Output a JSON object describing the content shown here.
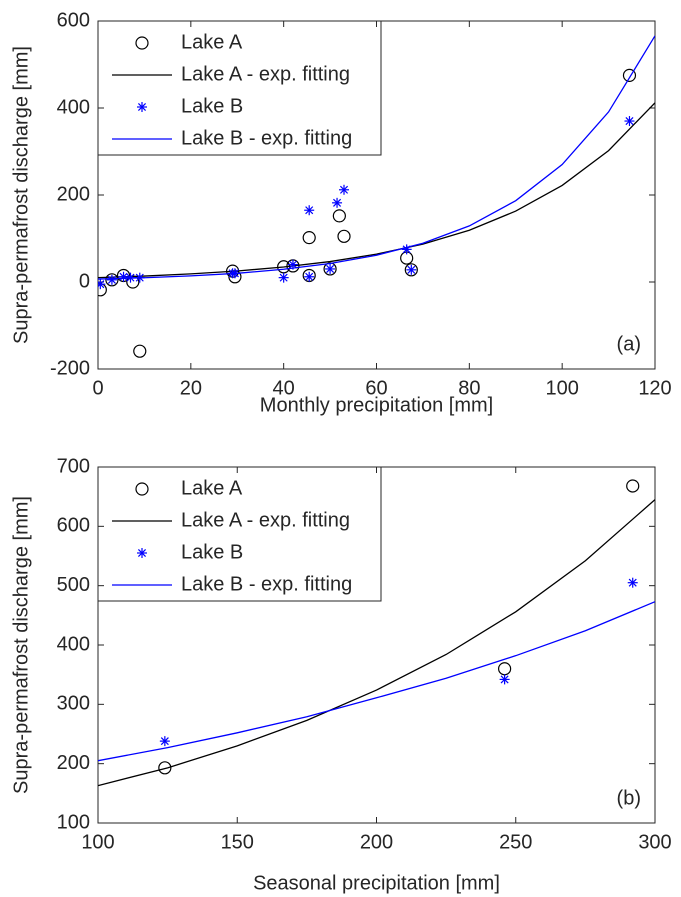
{
  "chart_data": [
    {
      "type": "scatter",
      "xlabel": "Monthly precipitation [mm]",
      "ylabel": "Supra-permafrost discharge [mm]",
      "annotation": "(a)",
      "xlim": [
        0,
        120
      ],
      "xticks": [
        0,
        20,
        40,
        60,
        80,
        100,
        120
      ],
      "ylim": [
        -200,
        600
      ],
      "yticks": [
        -200,
        0,
        200,
        400,
        600
      ],
      "legend": "upper left",
      "grid": false,
      "series": [
        {
          "name": "Lake A",
          "color": "#000000",
          "mode": "markers",
          "marker": "o",
          "x": [
            0.5,
            3,
            5.5,
            7.5,
            9,
            29,
            29.5,
            40,
            42,
            45.5,
            45.5,
            50,
            52,
            53,
            66.5,
            67.5,
            114.5
          ],
          "values": [
            -18,
            5,
            15,
            0,
            -159,
            25,
            12,
            35,
            37,
            102,
            15,
            30,
            152,
            105,
            55,
            28,
            475
          ]
        },
        {
          "name": "Lake A - exp. fitting",
          "color": "#000000",
          "mode": "lines",
          "x": [
            0,
            10,
            20,
            30,
            40,
            50,
            60,
            70,
            80,
            90,
            100,
            110,
            120
          ],
          "values": [
            10,
            13.6,
            18.6,
            25.3,
            34.5,
            47,
            64,
            87,
            119,
            163,
            222,
            302,
            412
          ]
        },
        {
          "name": "Lake B",
          "color": "#0000ff",
          "mode": "markers",
          "marker": "*",
          "x": [
            0.5,
            3,
            5.5,
            7,
            9,
            29,
            29.5,
            40,
            42,
            45.5,
            45.5,
            50,
            51.5,
            53,
            66.5,
            67.5,
            114.5
          ],
          "values": [
            -5,
            5,
            12,
            10,
            10,
            20,
            20,
            10,
            40,
            165,
            12,
            30,
            182,
            212,
            75,
            28,
            370
          ]
        },
        {
          "name": "Lake B - exp. fitting",
          "color": "#0000ff",
          "mode": "lines",
          "x": [
            0,
            10,
            20,
            30,
            40,
            50,
            60,
            70,
            80,
            90,
            100,
            110,
            120
          ],
          "values": [
            6.7,
            9.7,
            14,
            20,
            29.3,
            42.5,
            61.5,
            89,
            129,
            187,
            270,
            391,
            566
          ]
        }
      ]
    },
    {
      "type": "scatter",
      "xlabel": "Seasonal precipitation [mm]",
      "ylabel": "Supra-permafrost discharge [mm]",
      "annotation": "(b)",
      "xlim": [
        100,
        300
      ],
      "xticks": [
        100,
        150,
        200,
        250,
        300
      ],
      "ylim": [
        100,
        700
      ],
      "yticks": [
        100,
        200,
        300,
        400,
        500,
        600,
        700
      ],
      "legend": "upper left",
      "grid": false,
      "series": [
        {
          "name": "Lake A",
          "color": "#000000",
          "mode": "markers",
          "marker": "o",
          "x": [
            124,
            246,
            292
          ],
          "values": [
            193,
            360,
            668
          ]
        },
        {
          "name": "Lake A - exp. fitting",
          "color": "#000000",
          "mode": "lines",
          "x": [
            100,
            125,
            150,
            175,
            200,
            225,
            250,
            275,
            300
          ],
          "values": [
            163,
            193,
            230,
            273,
            324,
            384,
            456,
            542,
            645
          ]
        },
        {
          "name": "Lake B",
          "color": "#0000ff",
          "mode": "markers",
          "marker": "*",
          "x": [
            124,
            246,
            292
          ],
          "values": [
            238,
            342,
            505
          ]
        },
        {
          "name": "Lake B - exp. fitting",
          "color": "#0000ff",
          "mode": "lines",
          "x": [
            100,
            125,
            150,
            175,
            200,
            225,
            250,
            275,
            300
          ],
          "values": [
            205,
            227,
            252,
            279,
            311,
            344,
            382,
            424,
            473
          ]
        }
      ]
    }
  ]
}
